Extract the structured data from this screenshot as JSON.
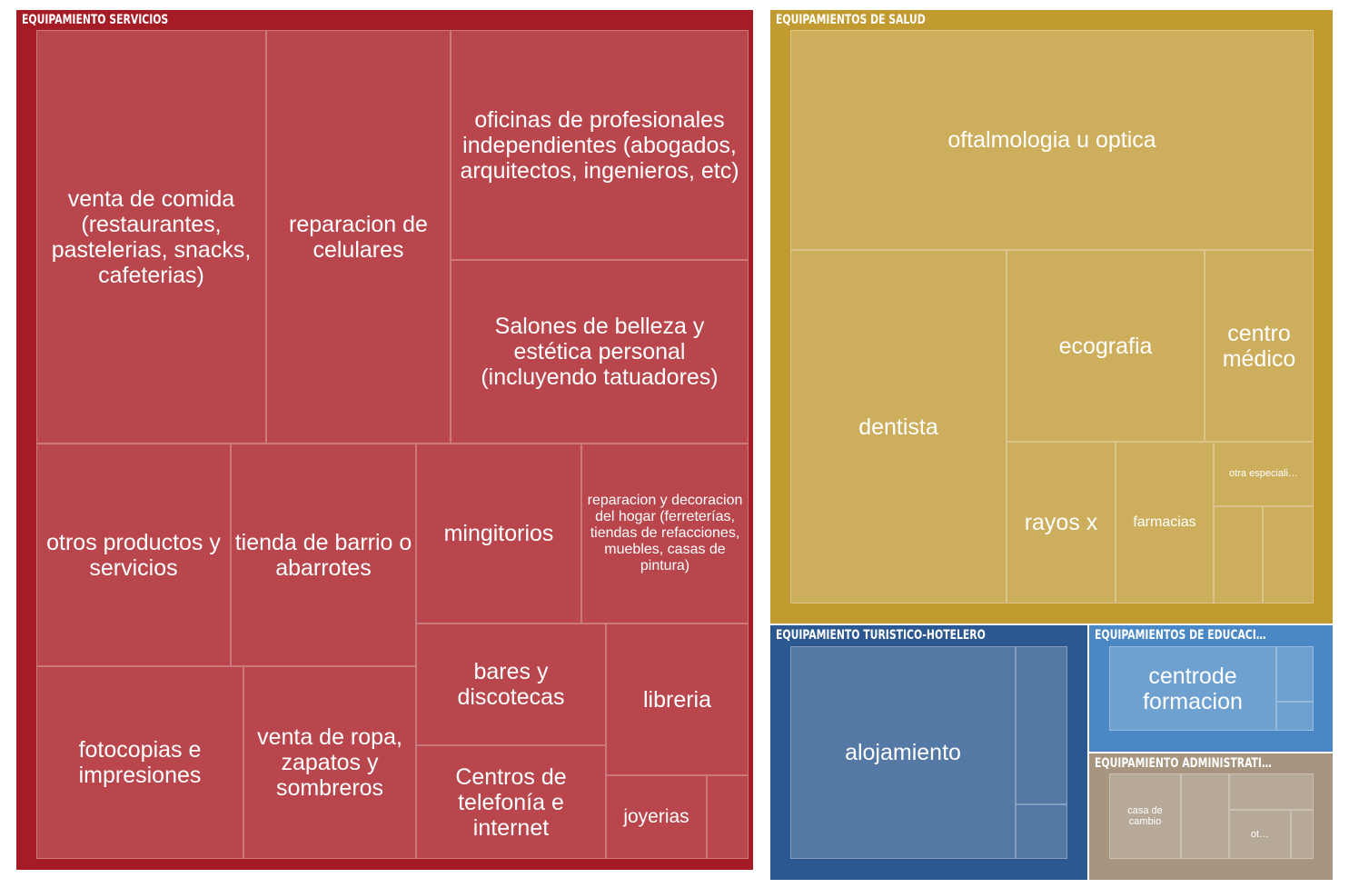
{
  "chart_data": {
    "type": "treemap",
    "groups": [
      {
        "id": "servicios",
        "name": "EQUIPAMIENTO SERVICIOS",
        "color": "#a61c26",
        "tile_color": "#b8464c",
        "children": [
          {
            "label": "venta de comida (restaurantes, pastelerias, snacks, cafeterias)",
            "size": "large"
          },
          {
            "label": "reparacion de celulares",
            "size": "large"
          },
          {
            "label": "oficinas de profesionales independientes (abogados, arquitectos, ingenieros, etc)",
            "size": "large"
          },
          {
            "label": "Salones de belleza y estética personal (incluyendo tatuadores)",
            "size": "large"
          },
          {
            "label": "otros productos y servicios",
            "size": "large"
          },
          {
            "label": "tienda de barrio o abarrotes",
            "size": "large"
          },
          {
            "label": "mingitorios",
            "size": "large"
          },
          {
            "label": "reparacion y decoracion del hogar (ferreterías, tiendas de refacciones, muebles, casas de pintura)",
            "size": "small"
          },
          {
            "label": "fotocopias e impresiones",
            "size": "large"
          },
          {
            "label": "venta de ropa, zapatos y sombreros",
            "size": "large"
          },
          {
            "label": "bares y discotecas",
            "size": "large"
          },
          {
            "label": "libreria",
            "size": "large"
          },
          {
            "label": "Centros de telefonía e internet",
            "size": "large"
          },
          {
            "label": "joyerias",
            "size": "medium"
          },
          {
            "label": "",
            "size": "none"
          }
        ]
      },
      {
        "id": "salud",
        "name": "EQUIPAMIENTOS DE SALUD",
        "color": "#c19a30",
        "tile_color": "#cdae5c",
        "children": [
          {
            "label": "oftalmologia u optica",
            "size": "large"
          },
          {
            "label": "dentista",
            "size": "large"
          },
          {
            "label": "ecografia",
            "size": "large"
          },
          {
            "label": "centro médico",
            "size": "large"
          },
          {
            "label": "rayos x",
            "size": "large"
          },
          {
            "label": "farmacias",
            "size": "small"
          },
          {
            "label": "otra especiali…",
            "size": "tiny"
          },
          {
            "label": "",
            "size": "none"
          },
          {
            "label": "",
            "size": "none"
          }
        ]
      },
      {
        "id": "turistico",
        "name": "EQUIPAMIENTO TURISTICO-HOTELERO",
        "color": "#2b5890",
        "tile_color": "#5579a5",
        "children": [
          {
            "label": "alojamiento",
            "size": "large"
          },
          {
            "label": "",
            "size": "none"
          },
          {
            "label": "",
            "size": "none"
          }
        ]
      },
      {
        "id": "educacion",
        "name": "EQUIPAMIENTOS DE EDUCACI…",
        "color": "#4a88c5",
        "tile_color": "#6ea0d0",
        "children": [
          {
            "label": "centrode formacion",
            "size": "large"
          },
          {
            "label": "",
            "size": "none"
          },
          {
            "label": "",
            "size": "none"
          }
        ]
      },
      {
        "id": "administrativo",
        "name": "EQUIPAMIENTO ADMINISTRATI…",
        "color": "#a89580",
        "tile_color": "#b6a998",
        "children": [
          {
            "label": "casa de cambio",
            "size": "tiny"
          },
          {
            "label": "",
            "size": "none"
          },
          {
            "label": "",
            "size": "none"
          },
          {
            "label": "ot…",
            "size": "tiny"
          },
          {
            "label": "",
            "size": "none"
          }
        ]
      }
    ]
  }
}
